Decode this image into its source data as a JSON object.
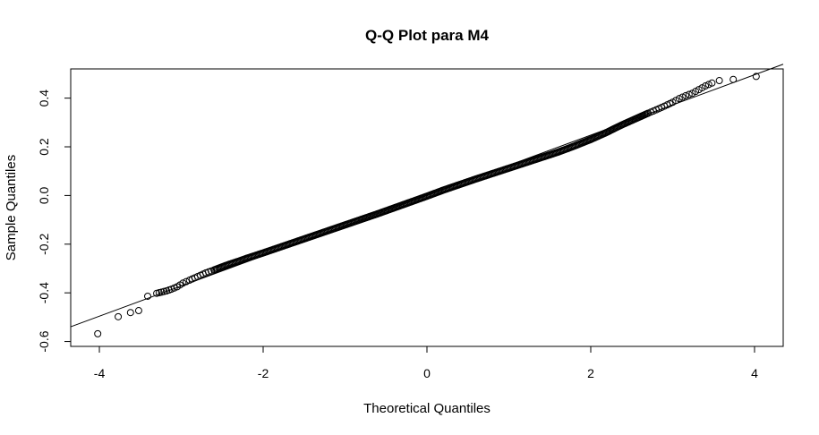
{
  "chart_data": {
    "type": "scatter",
    "title": "Q-Q Plot para M4",
    "xlabel": "Theoretical Quantiles",
    "ylabel": "Sample Quantiles",
    "xlim": [
      -4.35,
      4.35
    ],
    "ylim": [
      -0.62,
      0.52
    ],
    "xticks": [
      -4,
      -2,
      0,
      2,
      4
    ],
    "xtick_labels": [
      "-4",
      "-2",
      "0",
      "2",
      "4"
    ],
    "yticks": [
      -0.6,
      -0.4,
      -0.2,
      0.0,
      0.2,
      0.4
    ],
    "ytick_labels": [
      "-0.6",
      "-0.4",
      "-0.2",
      "0.0",
      "0.2",
      "0.4"
    ],
    "grid": false,
    "legend": "none",
    "marker": "open-circle",
    "reference_line": {
      "slope": 0.124,
      "intercept": 0.0
    },
    "tail_points": [
      {
        "x": -4.02,
        "y": -0.568
      },
      {
        "x": -3.77,
        "y": -0.498
      },
      {
        "x": -3.62,
        "y": -0.481
      },
      {
        "x": -3.52,
        "y": -0.473
      },
      {
        "x": -3.41,
        "y": -0.414
      },
      {
        "x": 3.57,
        "y": 0.472
      },
      {
        "x": 3.74,
        "y": 0.477
      },
      {
        "x": 4.02,
        "y": 0.489
      }
    ],
    "sample_points": [
      {
        "x": -3.3,
        "y": -0.402
      },
      {
        "x": -3.24,
        "y": -0.397
      },
      {
        "x": -3.18,
        "y": -0.392
      },
      {
        "x": -3.12,
        "y": -0.385
      },
      {
        "x": -3.05,
        "y": -0.375
      },
      {
        "x": -2.98,
        "y": -0.36
      },
      {
        "x": -2.9,
        "y": -0.348
      },
      {
        "x": -2.8,
        "y": -0.333
      },
      {
        "x": -2.7,
        "y": -0.318
      },
      {
        "x": -2.6,
        "y": -0.306
      },
      {
        "x": -2.5,
        "y": -0.293
      },
      {
        "x": -2.4,
        "y": -0.281
      },
      {
        "x": -2.3,
        "y": -0.27
      },
      {
        "x": -2.2,
        "y": -0.258
      },
      {
        "x": -2.1,
        "y": -0.247
      },
      {
        "x": -2.0,
        "y": -0.236
      },
      {
        "x": -1.8,
        "y": -0.213
      },
      {
        "x": -1.6,
        "y": -0.19
      },
      {
        "x": -1.4,
        "y": -0.167
      },
      {
        "x": -1.2,
        "y": -0.144
      },
      {
        "x": -1.0,
        "y": -0.121
      },
      {
        "x": -0.8,
        "y": -0.098
      },
      {
        "x": -0.6,
        "y": -0.075
      },
      {
        "x": -0.4,
        "y": -0.051
      },
      {
        "x": -0.2,
        "y": -0.027
      },
      {
        "x": 0.0,
        "y": -0.003
      },
      {
        "x": 0.2,
        "y": 0.022
      },
      {
        "x": 0.4,
        "y": 0.045
      },
      {
        "x": 0.6,
        "y": 0.068
      },
      {
        "x": 0.8,
        "y": 0.09
      },
      {
        "x": 1.0,
        "y": 0.112
      },
      {
        "x": 1.2,
        "y": 0.134
      },
      {
        "x": 1.4,
        "y": 0.156
      },
      {
        "x": 1.6,
        "y": 0.178
      },
      {
        "x": 1.8,
        "y": 0.203
      },
      {
        "x": 2.0,
        "y": 0.23
      },
      {
        "x": 2.1,
        "y": 0.245
      },
      {
        "x": 2.2,
        "y": 0.26
      },
      {
        "x": 2.3,
        "y": 0.277
      },
      {
        "x": 2.4,
        "y": 0.293
      },
      {
        "x": 2.5,
        "y": 0.308
      },
      {
        "x": 2.6,
        "y": 0.323
      },
      {
        "x": 2.7,
        "y": 0.338
      },
      {
        "x": 2.8,
        "y": 0.352
      },
      {
        "x": 2.9,
        "y": 0.367
      },
      {
        "x": 3.0,
        "y": 0.383
      },
      {
        "x": 3.08,
        "y": 0.398
      },
      {
        "x": 3.16,
        "y": 0.41
      },
      {
        "x": 3.24,
        "y": 0.42
      },
      {
        "x": 3.32,
        "y": 0.435
      },
      {
        "x": 3.4,
        "y": 0.45
      },
      {
        "x": 3.48,
        "y": 0.462
      }
    ]
  }
}
